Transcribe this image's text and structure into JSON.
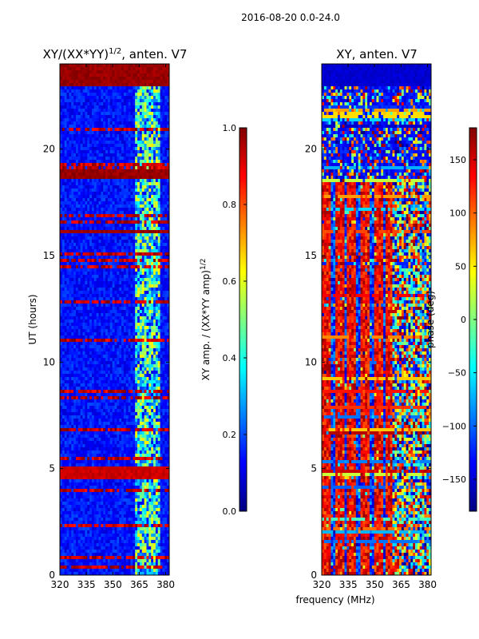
{
  "figure": {
    "suptitle": "2016-08-20 0.0-24.0"
  },
  "chart_data": [
    {
      "type": "heatmap",
      "panel": "left",
      "title_prefix": "XY/(XX*YY)",
      "title_exponent": "1/2",
      "title_suffix": ", anten. V7",
      "xlabel": "",
      "ylabel": "UT (hours)",
      "xlim": [
        320,
        382
      ],
      "ylim": [
        0,
        24
      ],
      "xticks": [
        "320",
        "335",
        "350",
        "365",
        "380"
      ],
      "yticks": [
        "0",
        "5",
        "10",
        "15",
        "20"
      ],
      "colorbar": {
        "label_prefix": "XY amp. / (XX*YY amp)",
        "label_exponent": "1/2",
        "range": [
          0.0,
          1.0
        ],
        "ticks": [
          "0.0",
          "0.2",
          "0.4",
          "0.6",
          "0.8",
          "1.0"
        ],
        "colormap": "jet"
      },
      "description_value_bands": [
        {
          "from_hour": 23.0,
          "to_hour": 24.0,
          "level": 1.0
        },
        {
          "from_hour": 18.6,
          "to_hour": 19.0,
          "level": 1.0
        },
        {
          "from_hour": 16.0,
          "to_hour": 16.2,
          "level": 1.0
        },
        {
          "from_hour": 4.5,
          "to_hour": 5.1,
          "level": 0.95
        }
      ]
    },
    {
      "type": "heatmap",
      "panel": "right",
      "title": "XY, anten. V7",
      "xlabel": "frequency (MHz)",
      "ylabel": "",
      "xlim": [
        320,
        382
      ],
      "ylim": [
        0,
        24
      ],
      "xticks": [
        "320",
        "335",
        "350",
        "365",
        "380"
      ],
      "yticks": [
        "0",
        "5",
        "10",
        "15",
        "20"
      ],
      "colorbar": {
        "label": "phase (deg)",
        "range": [
          -180,
          180
        ],
        "ticks": [
          "−150",
          "−100",
          "−50",
          "0",
          "50",
          "100",
          "150"
        ],
        "colormap": "jet"
      }
    }
  ],
  "colors": {
    "jet_dark_blue": "#00008f",
    "jet_blue": "#0000ff",
    "jet_cyan": "#00ffff",
    "jet_yellow": "#ffff00",
    "jet_red": "#ff0000",
    "jet_dark_red": "#800000"
  }
}
